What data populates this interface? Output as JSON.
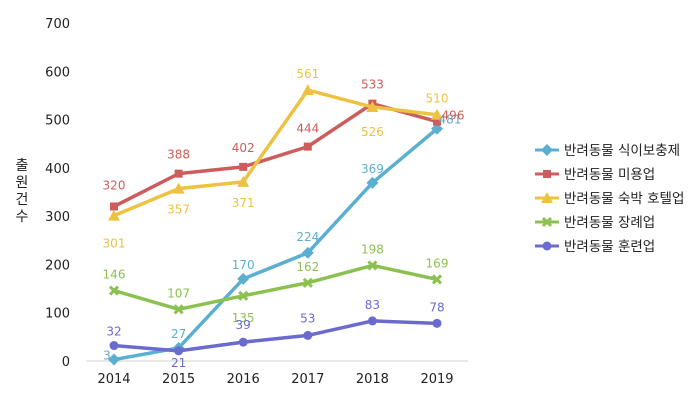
{
  "chart_data": {
    "type": "line",
    "title": "",
    "xlabel": "",
    "ylabel": "출원건수",
    "ylim": [
      0,
      700
    ],
    "yticks": [
      0,
      100,
      200,
      300,
      400,
      500,
      600,
      700
    ],
    "grid": false,
    "legend_position": "right",
    "x": [
      "2014",
      "2015",
      "2016",
      "2017",
      "2018",
      "2019"
    ],
    "series": [
      {
        "name": "반려동물 식이보충제",
        "color": "#5BAFD1",
        "marker": "diamond",
        "values": [
          3,
          27,
          170,
          224,
          369,
          481
        ]
      },
      {
        "name": "반려동물 미용업",
        "color": "#CD5C5C",
        "marker": "square",
        "values": [
          320,
          388,
          402,
          444,
          533,
          496
        ]
      },
      {
        "name": "반려동물 숙박 호텔업",
        "color": "#EDC240",
        "marker": "triangle",
        "values": [
          301,
          357,
          371,
          561,
          526,
          510
        ]
      },
      {
        "name": "반려동물 장례업",
        "color": "#8CC152",
        "marker": "x",
        "values": [
          146,
          107,
          135,
          162,
          198,
          169
        ]
      },
      {
        "name": "반려동물 훈련업",
        "color": "#6B6BCF",
        "marker": "circle",
        "values": [
          32,
          21,
          39,
          53,
          83,
          78
        ]
      }
    ]
  }
}
